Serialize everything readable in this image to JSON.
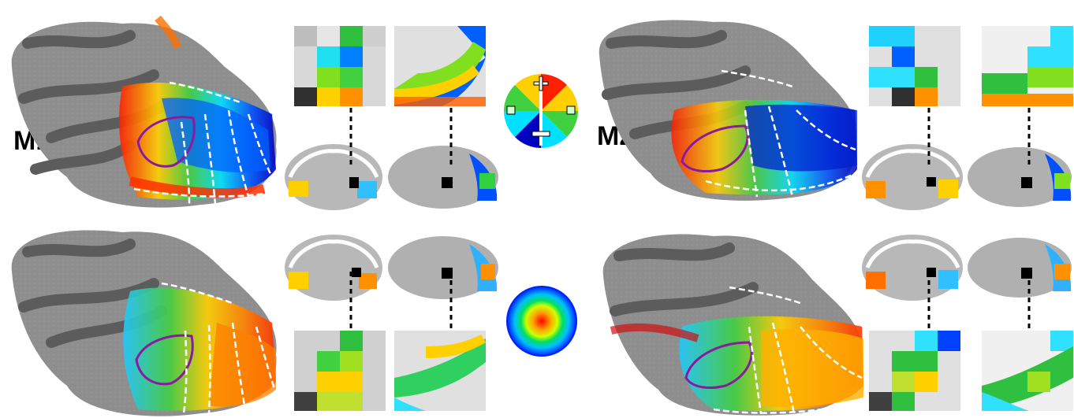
{
  "labels": {
    "m1": "M1",
    "m2": "M2"
  },
  "legend": {
    "polar_icons": [
      "plus-icon",
      "minus-icon",
      "square-icon"
    ],
    "colors": [
      "#ff0000",
      "#ff8000",
      "#ffd000",
      "#80e020",
      "#00c060",
      "#00e0ff",
      "#0060ff",
      "#0000a0"
    ]
  },
  "palette": {
    "cortex_light": "#8e8e8e",
    "cortex_dark": "#5c5c5c",
    "roi_outline": "#8b1a9e"
  }
}
